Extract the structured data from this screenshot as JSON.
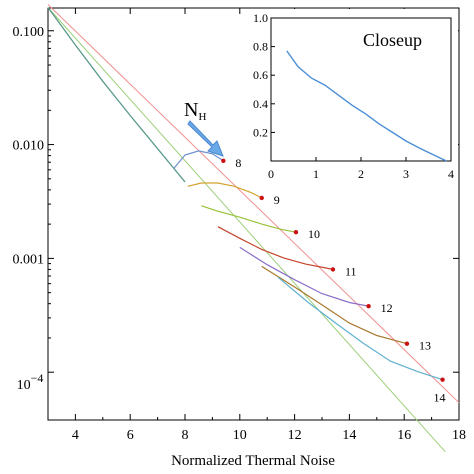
{
  "chart_data": {
    "type": "line",
    "main": {
      "xlabel": "Normalized Thermal Noise",
      "xlim": [
        3,
        18
      ],
      "ylim_log10": [
        -4.42,
        -0.8
      ],
      "y_scale": "log",
      "xticks": [
        4,
        6,
        8,
        10,
        12,
        14,
        16,
        18
      ],
      "xtick_labels": [
        "4",
        "6",
        "8",
        "10",
        "12",
        "14",
        "16",
        "18"
      ],
      "yticks": [
        0.1,
        0.01,
        0.001
      ],
      "ytick_labels": [
        "0.100",
        "0.010",
        "0.001"
      ],
      "ytick_power_label": {
        "value": 0.0001,
        "base": "10",
        "exponent": "−4"
      },
      "grid": false,
      "annotation_label": {
        "main": "N",
        "sub": "H"
      },
      "endpoint_color": "#cc1111",
      "reference_lines": [
        {
          "name": "red-asymptote",
          "color": "#f09090",
          "x": [
            3,
            18
          ],
          "y": [
            0.17,
            5.4e-05
          ]
        },
        {
          "name": "green-asymptote",
          "color": "#9cd07a",
          "x": [
            3,
            17.5
          ],
          "y": [
            0.16,
            2e-05
          ]
        }
      ],
      "envelope": {
        "color": "#5a9a8c",
        "x": [
          3,
          4,
          5,
          6,
          7,
          8
        ],
        "y": [
          0.16,
          0.075,
          0.036,
          0.018,
          0.0092,
          0.0047
        ]
      },
      "series": [
        {
          "label": "8",
          "color": "#6a8fd0",
          "x": [
            7.6,
            8.0,
            8.5,
            9.0,
            9.4
          ],
          "y": [
            0.0062,
            0.0081,
            0.0088,
            0.0083,
            0.0072
          ]
        },
        {
          "label": "9",
          "color": "#d4a22c",
          "x": [
            8.1,
            8.6,
            9.2,
            9.8,
            10.4,
            10.8
          ],
          "y": [
            0.0043,
            0.0046,
            0.0046,
            0.0043,
            0.0038,
            0.0034
          ]
        },
        {
          "label": "10",
          "color": "#98c23a",
          "x": [
            8.6,
            9.2,
            10.0,
            10.8,
            11.5,
            12.05
          ],
          "y": [
            0.0029,
            0.0026,
            0.0023,
            0.002,
            0.0018,
            0.0017
          ]
        },
        {
          "label": "11",
          "color": "#c4452a",
          "x": [
            9.2,
            10.0,
            10.8,
            11.6,
            12.4,
            13.4
          ],
          "y": [
            0.0019,
            0.0015,
            0.0012,
            0.00101,
            0.00089,
            0.0008
          ]
        },
        {
          "label": "12",
          "color": "#8a6fc8",
          "x": [
            10.0,
            11.0,
            12.0,
            13.0,
            14.0,
            14.7
          ],
          "y": [
            0.00125,
            0.00088,
            0.00065,
            0.00049,
            0.00041,
            0.00038
          ]
        },
        {
          "label": "13",
          "color": "#a8782e",
          "x": [
            10.8,
            12.0,
            13.0,
            14.0,
            15.0,
            16.1
          ],
          "y": [
            0.00085,
            0.00056,
            0.00039,
            0.00027,
            0.00021,
            0.000178
          ]
        },
        {
          "label": "14",
          "color": "#5fb0cf",
          "x": [
            11.4,
            12.5,
            13.5,
            14.5,
            15.5,
            16.5,
            17.4
          ],
          "y": [
            0.00068,
            0.00041,
            0.00027,
            0.00018,
            0.000125,
            0.000101,
            8.6e-05
          ]
        }
      ]
    },
    "inset": {
      "title": "Closeup",
      "xlim": [
        0,
        4
      ],
      "ylim": [
        0,
        1.0
      ],
      "xticks": [
        0,
        1,
        2,
        3,
        4
      ],
      "xtick_labels": [
        "0",
        "1",
        "2",
        "3",
        "4"
      ],
      "yticks": [
        0.2,
        0.4,
        0.6,
        0.8,
        1.0
      ],
      "ytick_labels": [
        "0.2",
        "0.4",
        "0.6",
        "0.8",
        "1.0"
      ],
      "series": [
        {
          "color": "#4a8fd6",
          "x": [
            0.35,
            0.6,
            0.9,
            1.2,
            1.5,
            1.8,
            2.1,
            2.4,
            2.7,
            3.0,
            3.3,
            3.6,
            3.9
          ],
          "y": [
            0.77,
            0.66,
            0.58,
            0.53,
            0.46,
            0.39,
            0.33,
            0.26,
            0.2,
            0.14,
            0.09,
            0.045,
            0.0
          ]
        }
      ]
    }
  }
}
